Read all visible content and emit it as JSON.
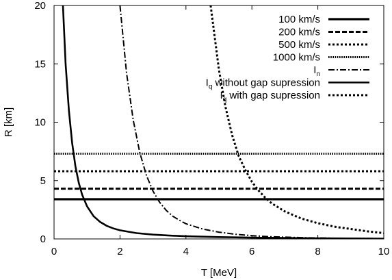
{
  "chart_data": {
    "type": "line",
    "title": "",
    "xlabel": "T [MeV]",
    "ylabel": "R [km]",
    "xlim": [
      0,
      10
    ],
    "ylim": [
      0,
      20
    ],
    "xticks": [
      "0",
      "2",
      "4",
      "6",
      "8",
      "10"
    ],
    "yticks": [
      "0",
      "5",
      "10",
      "15",
      "20"
    ],
    "grid": false,
    "legend_position": "top-right",
    "series": [
      {
        "name": "100 km/s",
        "kind": "horizontal",
        "y": 3.4,
        "style": "solid-thick"
      },
      {
        "name": "200 km/s",
        "kind": "horizontal",
        "y": 4.3,
        "style": "dashed"
      },
      {
        "name": "500 km/s",
        "kind": "horizontal",
        "y": 5.8,
        "style": "dotted"
      },
      {
        "name": "1000 km/s",
        "kind": "horizontal",
        "y": 7.3,
        "style": "dotted-dense"
      },
      {
        "name": "I",
        "subscript": "n",
        "kind": "curve",
        "style": "dashdot",
        "x": [
          2.0,
          2.2,
          2.4,
          2.6,
          2.8,
          3.0,
          3.2,
          3.4,
          3.6,
          3.8,
          4.0,
          4.5,
          5.0,
          5.5,
          6.0,
          6.5,
          7.0,
          7.5,
          8.0,
          8.5,
          9.0,
          9.5,
          10.0
        ],
        "y": [
          20.0,
          14.2,
          10.2,
          7.4,
          5.45,
          4.1,
          3.15,
          2.45,
          1.95,
          1.6,
          1.3,
          0.85,
          0.58,
          0.4,
          0.28,
          0.2,
          0.15,
          0.11,
          0.08,
          0.06,
          0.05,
          0.04,
          0.03
        ]
      },
      {
        "name": "I",
        "subscript": "q",
        "suffix": " without gap supression",
        "kind": "curve",
        "style": "solid",
        "x": [
          0.27,
          0.35,
          0.45,
          0.55,
          0.65,
          0.75,
          0.85,
          1.0,
          1.2,
          1.4,
          1.6,
          1.8,
          2.0,
          2.5,
          3.0,
          3.5,
          4.0,
          5.0,
          6.0,
          7.0,
          8.0,
          9.0,
          10.0
        ],
        "y": [
          20.0,
          15.0,
          11.0,
          8.2,
          6.2,
          4.8,
          3.8,
          2.8,
          1.95,
          1.45,
          1.12,
          0.9,
          0.74,
          0.5,
          0.37,
          0.29,
          0.23,
          0.16,
          0.11,
          0.08,
          0.06,
          0.04,
          0.02
        ]
      },
      {
        "name": "I",
        "subscript": "q",
        "suffix": " with gap supression",
        "kind": "curve",
        "style": "dotted",
        "x": [
          4.75,
          5.0,
          5.2,
          5.4,
          5.6,
          5.8,
          6.0,
          6.2,
          6.4,
          6.6,
          7.0,
          7.5,
          8.0,
          8.5,
          9.0,
          9.5,
          10.0
        ],
        "y": [
          20.0,
          14.5,
          11.3,
          8.9,
          7.1,
          5.9,
          4.9,
          4.15,
          3.55,
          3.05,
          2.35,
          1.75,
          1.35,
          1.05,
          0.85,
          0.65,
          0.5
        ]
      }
    ]
  }
}
